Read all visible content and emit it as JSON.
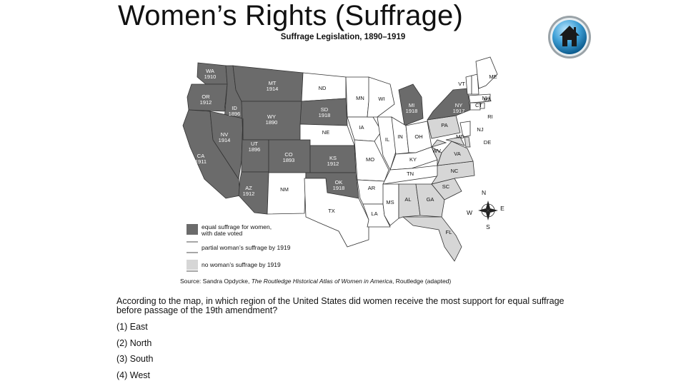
{
  "slide": {
    "title": "Women’s Rights (Suffrage)",
    "home_icon": "home-icon"
  },
  "map": {
    "title": "Suffrage Legislation, 1890–1919",
    "source_prefix": "Source: Sandra Opdycke, ",
    "source_title": "The Routledge Historical Atlas of Women in America",
    "source_suffix": ", Routledge (adapted)",
    "colors": {
      "equal": "#6b6b6b",
      "partial": "#ffffff",
      "none": "#d6d6d6",
      "border": "#333333"
    },
    "legend": [
      {
        "key": "equal",
        "line1": "equal suffrage for women,",
        "line2": "with date voted"
      },
      {
        "key": "partial",
        "line1": "partial woman’s suffrage by 1919",
        "line2": ""
      },
      {
        "key": "none",
        "line1": "no woman’s suffrage by 1919",
        "line2": ""
      }
    ],
    "compass": {
      "n": "N",
      "s": "S",
      "e": "E",
      "w": "W"
    },
    "states": [
      {
        "abbr": "WA",
        "year": "1910",
        "status": "equal"
      },
      {
        "abbr": "OR",
        "year": "1912",
        "status": "equal"
      },
      {
        "abbr": "CA",
        "year": "1911",
        "status": "equal"
      },
      {
        "abbr": "ID",
        "year": "1896",
        "status": "equal"
      },
      {
        "abbr": "NV",
        "year": "1914",
        "status": "equal"
      },
      {
        "abbr": "MT",
        "year": "1914",
        "status": "equal"
      },
      {
        "abbr": "WY",
        "year": "1890",
        "status": "equal"
      },
      {
        "abbr": "UT",
        "year": "1896",
        "status": "equal"
      },
      {
        "abbr": "AZ",
        "year": "1912",
        "status": "equal"
      },
      {
        "abbr": "CO",
        "year": "1893",
        "status": "equal"
      },
      {
        "abbr": "NM",
        "year": "",
        "status": "partial"
      },
      {
        "abbr": "ND",
        "year": "",
        "status": "partial"
      },
      {
        "abbr": "SD",
        "year": "1918",
        "status": "equal"
      },
      {
        "abbr": "NE",
        "year": "",
        "status": "partial"
      },
      {
        "abbr": "KS",
        "year": "1912",
        "status": "equal"
      },
      {
        "abbr": "OK",
        "year": "1918",
        "status": "equal"
      },
      {
        "abbr": "TX",
        "year": "",
        "status": "partial"
      },
      {
        "abbr": "MN",
        "year": "",
        "status": "partial"
      },
      {
        "abbr": "IA",
        "year": "",
        "status": "partial"
      },
      {
        "abbr": "MO",
        "year": "",
        "status": "partial"
      },
      {
        "abbr": "AR",
        "year": "",
        "status": "partial"
      },
      {
        "abbr": "LA",
        "year": "",
        "status": "partial"
      },
      {
        "abbr": "WI",
        "year": "",
        "status": "partial"
      },
      {
        "abbr": "IL",
        "year": "",
        "status": "partial"
      },
      {
        "abbr": "MI",
        "year": "1918",
        "status": "equal"
      },
      {
        "abbr": "IN",
        "year": "",
        "status": "partial"
      },
      {
        "abbr": "OH",
        "year": "",
        "status": "partial"
      },
      {
        "abbr": "KY",
        "year": "",
        "status": "partial"
      },
      {
        "abbr": "TN",
        "year": "",
        "status": "partial"
      },
      {
        "abbr": "MS",
        "year": "",
        "status": "partial"
      },
      {
        "abbr": "AL",
        "year": "",
        "status": "none"
      },
      {
        "abbr": "GA",
        "year": "",
        "status": "none"
      },
      {
        "abbr": "FL",
        "year": "",
        "status": "none"
      },
      {
        "abbr": "SC",
        "year": "",
        "status": "none"
      },
      {
        "abbr": "NC",
        "year": "",
        "status": "none"
      },
      {
        "abbr": "VA",
        "year": "",
        "status": "none"
      },
      {
        "abbr": "WV",
        "year": "",
        "status": "none"
      },
      {
        "abbr": "PA",
        "year": "",
        "status": "none"
      },
      {
        "abbr": "NY",
        "year": "1917",
        "status": "equal"
      },
      {
        "abbr": "MD",
        "year": "",
        "status": "none"
      },
      {
        "abbr": "DE",
        "year": "",
        "status": "none"
      },
      {
        "abbr": "NJ",
        "year": "",
        "status": "partial"
      },
      {
        "abbr": "CT",
        "year": "",
        "status": "partial"
      },
      {
        "abbr": "RI",
        "year": "",
        "status": "partial"
      },
      {
        "abbr": "MA",
        "year": "",
        "status": "partial"
      },
      {
        "abbr": "VT",
        "year": "",
        "status": "partial"
      },
      {
        "abbr": "NH",
        "year": "",
        "status": "partial"
      },
      {
        "abbr": "ME",
        "year": "",
        "status": "partial"
      }
    ]
  },
  "question": {
    "text": "According to the map, in which region of the United States did women receive the most support for equal suffrage before passage of the 19th amendment?",
    "choices": [
      "(1) East",
      "(2) North",
      "(3) South",
      "(4) West"
    ]
  }
}
